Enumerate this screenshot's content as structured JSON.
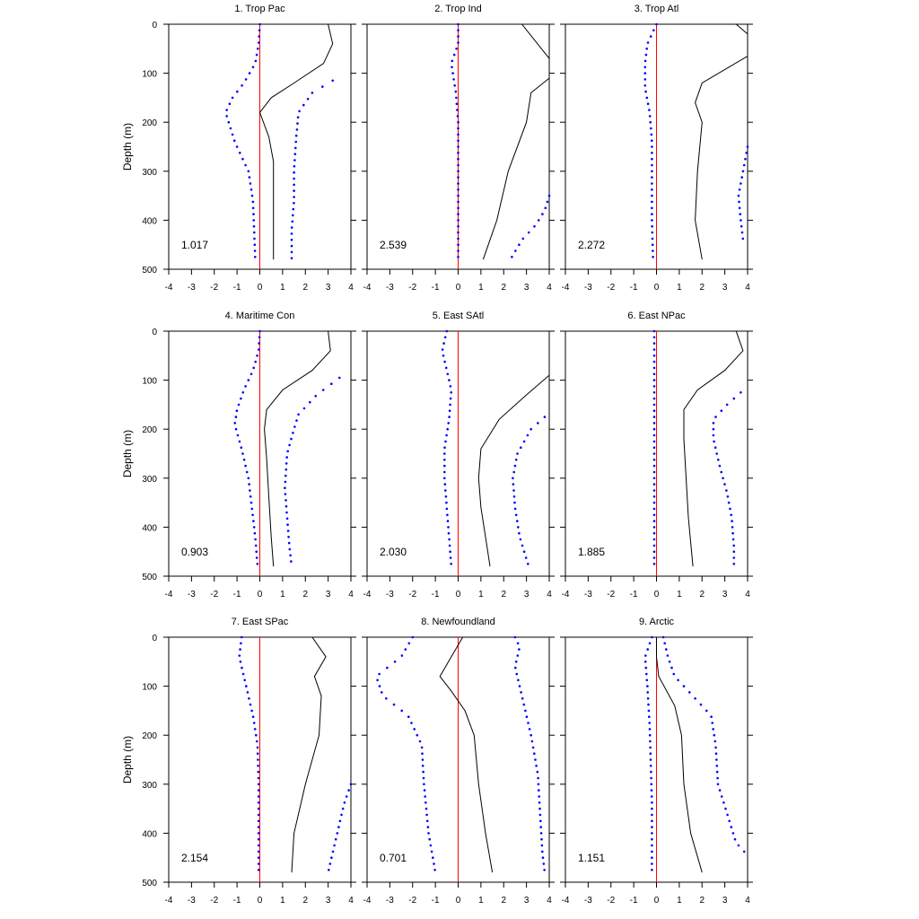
{
  "chart_data": {
    "type": "line",
    "ylabel": "Depth (m)",
    "x_ticks": [
      "-4",
      "-3",
      "-2",
      "-1",
      "0",
      "1",
      "2",
      "3",
      "4"
    ],
    "y_ticks": [
      "0",
      "100",
      "200",
      "300",
      "400",
      "500"
    ],
    "xlim": [
      -4,
      4
    ],
    "ylim": [
      0,
      500
    ],
    "y_inverted": true,
    "colors": {
      "line": "#000000",
      "zero_line": "#ff0000",
      "dots": "#0000ff"
    },
    "panels": [
      {
        "title": "1. Trop Pac",
        "value": "1.017",
        "line": [
          [
            3,
            0
          ],
          [
            3.2,
            40
          ],
          [
            2.8,
            80
          ],
          [
            1.5,
            120
          ],
          [
            0.5,
            150
          ],
          [
            0,
            180
          ],
          [
            0.4,
            230
          ],
          [
            0.6,
            280
          ],
          [
            0.6,
            350
          ],
          [
            0.6,
            420
          ],
          [
            0.6,
            480
          ]
        ],
        "lower": [
          [
            0,
            0
          ],
          [
            -0.05,
            40
          ],
          [
            -0.2,
            80
          ],
          [
            -0.7,
            120
          ],
          [
            -1.2,
            150
          ],
          [
            -1.5,
            180
          ],
          [
            -1.1,
            240
          ],
          [
            -0.5,
            300
          ],
          [
            -0.3,
            360
          ],
          [
            -0.25,
            420
          ],
          [
            -0.2,
            480
          ]
        ],
        "upper": [
          [
            3.2,
            115
          ],
          [
            2.3,
            140
          ],
          [
            1.7,
            180
          ],
          [
            1.6,
            230
          ],
          [
            1.5,
            300
          ],
          [
            1.5,
            360
          ],
          [
            1.4,
            420
          ],
          [
            1.4,
            480
          ]
        ]
      },
      {
        "title": "2. Trop Ind",
        "value": "2.539",
        "line": [
          [
            2.8,
            0
          ],
          [
            4,
            70
          ],
          [
            4,
            110
          ],
          [
            3.2,
            140
          ],
          [
            3,
            200
          ],
          [
            2.2,
            300
          ],
          [
            1.7,
            400
          ],
          [
            1.1,
            480
          ]
        ],
        "lower": [
          [
            0,
            0
          ],
          [
            0,
            40
          ],
          [
            -0.3,
            80
          ],
          [
            -0.2,
            110
          ],
          [
            -0.1,
            140
          ],
          [
            0,
            200
          ],
          [
            0,
            280
          ],
          [
            0,
            360
          ],
          [
            0,
            440
          ],
          [
            0,
            480
          ]
        ],
        "upper": [
          [
            4,
            350
          ],
          [
            3.8,
            380
          ],
          [
            3.4,
            410
          ],
          [
            2.8,
            440
          ],
          [
            2.3,
            480
          ]
        ]
      },
      {
        "title": "3. Trop Atl",
        "value": "2.272",
        "line": [
          [
            3.5,
            0
          ],
          [
            4,
            20
          ],
          [
            4,
            65
          ],
          [
            2,
            120
          ],
          [
            1.7,
            160
          ],
          [
            2,
            200
          ],
          [
            1.8,
            300
          ],
          [
            1.7,
            400
          ],
          [
            2,
            480
          ]
        ],
        "lower": [
          [
            0,
            0
          ],
          [
            -0.4,
            40
          ],
          [
            -0.5,
            80
          ],
          [
            -0.5,
            130
          ],
          [
            -0.3,
            180
          ],
          [
            -0.2,
            240
          ],
          [
            -0.2,
            320
          ],
          [
            -0.2,
            400
          ],
          [
            -0.15,
            480
          ]
        ],
        "upper": [
          [
            4,
            250
          ],
          [
            3.8,
            300
          ],
          [
            3.6,
            350
          ],
          [
            3.7,
            400
          ],
          [
            3.8,
            440
          ]
        ]
      },
      {
        "title": "4. Maritime Con",
        "value": "0.903",
        "line": [
          [
            3,
            0
          ],
          [
            3.1,
            40
          ],
          [
            2.3,
            80
          ],
          [
            1,
            120
          ],
          [
            0.3,
            160
          ],
          [
            0.2,
            200
          ],
          [
            0.3,
            260
          ],
          [
            0.4,
            340
          ],
          [
            0.5,
            420
          ],
          [
            0.6,
            480
          ]
        ],
        "lower": [
          [
            0,
            0
          ],
          [
            -0.05,
            40
          ],
          [
            -0.3,
            80
          ],
          [
            -0.7,
            120
          ],
          [
            -1,
            160
          ],
          [
            -1.1,
            190
          ],
          [
            -0.8,
            240
          ],
          [
            -0.5,
            300
          ],
          [
            -0.35,
            360
          ],
          [
            -0.2,
            420
          ],
          [
            -0.1,
            480
          ]
        ],
        "upper": [
          [
            3.5,
            95
          ],
          [
            2.5,
            130
          ],
          [
            1.7,
            170
          ],
          [
            1.5,
            200
          ],
          [
            1.2,
            250
          ],
          [
            1.1,
            320
          ],
          [
            1.2,
            380
          ],
          [
            1.3,
            440
          ],
          [
            1.4,
            480
          ]
        ]
      },
      {
        "title": "5. East SAtl",
        "value": "2.030",
        "line": [
          [
            4,
            90
          ],
          [
            3,
            130
          ],
          [
            1.8,
            180
          ],
          [
            1,
            240
          ],
          [
            0.9,
            300
          ],
          [
            1,
            360
          ],
          [
            1.2,
            420
          ],
          [
            1.4,
            480
          ]
        ],
        "lower": [
          [
            -0.5,
            0
          ],
          [
            -0.7,
            40
          ],
          [
            -0.5,
            80
          ],
          [
            -0.3,
            120
          ],
          [
            -0.4,
            180
          ],
          [
            -0.6,
            240
          ],
          [
            -0.6,
            300
          ],
          [
            -0.5,
            360
          ],
          [
            -0.4,
            420
          ],
          [
            -0.3,
            480
          ]
        ],
        "upper": [
          [
            3.8,
            175
          ],
          [
            3.2,
            200
          ],
          [
            2.6,
            250
          ],
          [
            2.4,
            300
          ],
          [
            2.5,
            360
          ],
          [
            2.7,
            420
          ],
          [
            3.1,
            480
          ]
        ]
      },
      {
        "title": "6. East NPac",
        "value": "1.885",
        "line": [
          [
            3.5,
            0
          ],
          [
            3.8,
            40
          ],
          [
            3,
            80
          ],
          [
            1.8,
            120
          ],
          [
            1.2,
            160
          ],
          [
            1.2,
            220
          ],
          [
            1.3,
            300
          ],
          [
            1.4,
            380
          ],
          [
            1.6,
            480
          ]
        ],
        "lower": [
          [
            -0.1,
            0
          ],
          [
            -0.1,
            60
          ],
          [
            -0.1,
            120
          ],
          [
            -0.1,
            180
          ],
          [
            -0.1,
            240
          ],
          [
            -0.1,
            300
          ],
          [
            -0.1,
            360
          ],
          [
            -0.1,
            420
          ],
          [
            -0.1,
            480
          ]
        ],
        "upper": [
          [
            3.7,
            125
          ],
          [
            3.1,
            150
          ],
          [
            2.5,
            180
          ],
          [
            2.5,
            220
          ],
          [
            2.8,
            280
          ],
          [
            3.1,
            330
          ],
          [
            3.3,
            380
          ],
          [
            3.4,
            440
          ],
          [
            3.4,
            480
          ]
        ]
      },
      {
        "title": "7. East SPac",
        "value": "2.154",
        "line": [
          [
            2.3,
            0
          ],
          [
            2.9,
            40
          ],
          [
            2.4,
            80
          ],
          [
            2.7,
            120
          ],
          [
            2.6,
            200
          ],
          [
            2,
            300
          ],
          [
            1.5,
            400
          ],
          [
            1.4,
            480
          ]
        ],
        "lower": [
          [
            -0.8,
            0
          ],
          [
            -0.9,
            40
          ],
          [
            -0.7,
            80
          ],
          [
            -0.5,
            120
          ],
          [
            -0.3,
            160
          ],
          [
            -0.1,
            220
          ],
          [
            -0.05,
            300
          ],
          [
            -0.05,
            380
          ],
          [
            -0.05,
            480
          ]
        ],
        "upper": [
          [
            4,
            300
          ],
          [
            3.7,
            340
          ],
          [
            3.5,
            380
          ],
          [
            3.3,
            420
          ],
          [
            3.1,
            460
          ],
          [
            3,
            480
          ]
        ]
      },
      {
        "title": "8. Newfoundland",
        "value": "0.701",
        "line": [
          [
            0.2,
            0
          ],
          [
            -0.3,
            40
          ],
          [
            -0.8,
            80
          ],
          [
            -0.3,
            110
          ],
          [
            0.3,
            150
          ],
          [
            0.7,
            200
          ],
          [
            0.9,
            300
          ],
          [
            1.2,
            400
          ],
          [
            1.5,
            480
          ]
        ],
        "lower": [
          [
            -2,
            0
          ],
          [
            -2.5,
            40
          ],
          [
            -3.6,
            80
          ],
          [
            -3.3,
            120
          ],
          [
            -2.2,
            160
          ],
          [
            -1.6,
            220
          ],
          [
            -1.5,
            300
          ],
          [
            -1.3,
            400
          ],
          [
            -1,
            480
          ]
        ],
        "upper": [
          [
            2.5,
            0
          ],
          [
            2.7,
            20
          ],
          [
            2.5,
            60
          ],
          [
            2.8,
            120
          ],
          [
            3.2,
            200
          ],
          [
            3.5,
            280
          ],
          [
            3.6,
            360
          ],
          [
            3.7,
            440
          ],
          [
            3.8,
            480
          ]
        ]
      },
      {
        "title": "9. Arctic",
        "value": "1.151",
        "line": [
          [
            0,
            0
          ],
          [
            0,
            40
          ],
          [
            0.1,
            80
          ],
          [
            0.8,
            140
          ],
          [
            1.1,
            200
          ],
          [
            1.2,
            300
          ],
          [
            1.5,
            400
          ],
          [
            2,
            480
          ]
        ],
        "lower": [
          [
            -0.2,
            0
          ],
          [
            -0.5,
            40
          ],
          [
            -0.4,
            100
          ],
          [
            -0.3,
            180
          ],
          [
            -0.25,
            260
          ],
          [
            -0.2,
            340
          ],
          [
            -0.2,
            420
          ],
          [
            -0.2,
            480
          ]
        ],
        "upper": [
          [
            0.3,
            0
          ],
          [
            0.5,
            40
          ],
          [
            0.8,
            80
          ],
          [
            1.6,
            120
          ],
          [
            2.4,
            160
          ],
          [
            2.6,
            220
          ],
          [
            2.7,
            300
          ],
          [
            3.1,
            360
          ],
          [
            3.5,
            420
          ],
          [
            3.9,
            440
          ]
        ]
      }
    ]
  }
}
